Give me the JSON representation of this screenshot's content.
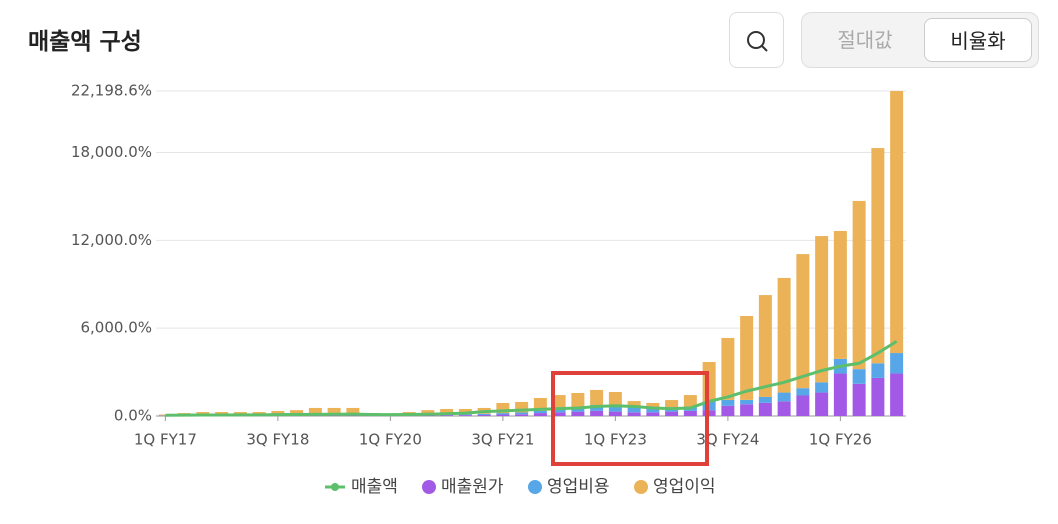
{
  "chart_data": {
    "type": "bar",
    "title": "매출액 구성",
    "categories": [
      "1Q FY17",
      null,
      null,
      null,
      null,
      null,
      "3Q FY18",
      null,
      null,
      null,
      null,
      null,
      "1Q FY20",
      null,
      null,
      null,
      null,
      null,
      "3Q FY21",
      null,
      null,
      null,
      null,
      null,
      "1Q FY23",
      null,
      null,
      null,
      null,
      null,
      "3Q FY24",
      null,
      null,
      null,
      null,
      null,
      "1Q FY26",
      null,
      null,
      null
    ],
    "ylim": [
      0,
      22198.6
    ],
    "yticks": [
      {
        "value": 0,
        "label": "0.0%"
      },
      {
        "value": 6000,
        "label": "6,000.0%"
      },
      {
        "value": 12000,
        "label": "12,000.0%"
      },
      {
        "value": 18000,
        "label": "18,000.0%"
      },
      {
        "value": 22198.6,
        "label": "22,198.6%"
      }
    ],
    "grid": true,
    "series": [
      {
        "name": "매출액",
        "type": "line",
        "color": "#5dbf6b",
        "values": [
          50,
          60,
          70,
          70,
          80,
          80,
          90,
          100,
          110,
          120,
          130,
          100,
          90,
          100,
          120,
          150,
          200,
          300,
          350,
          400,
          450,
          500,
          550,
          650,
          700,
          650,
          550,
          500,
          550,
          1000,
          1300,
          1700,
          2000,
          2300,
          2700,
          3100,
          3400,
          3600,
          4300,
          5100
        ]
      },
      {
        "name": "매출원가",
        "type": "bar",
        "color": "#a25ae6",
        "values": [
          20,
          30,
          40,
          40,
          40,
          40,
          50,
          50,
          60,
          60,
          60,
          40,
          30,
          40,
          50,
          60,
          60,
          70,
          100,
          120,
          200,
          250,
          300,
          350,
          300,
          250,
          250,
          300,
          350,
          400,
          700,
          800,
          900,
          1000,
          1400,
          1600,
          2900,
          2200,
          2600,
          2900
        ]
      },
      {
        "name": "영업비용",
        "type": "bar",
        "color": "#57a7e8",
        "values": [
          20,
          30,
          40,
          40,
          40,
          40,
          50,
          50,
          60,
          60,
          60,
          40,
          30,
          40,
          50,
          60,
          60,
          80,
          100,
          120,
          150,
          200,
          250,
          400,
          400,
          350,
          300,
          300,
          300,
          600,
          400,
          300,
          400,
          600,
          500,
          700,
          1000,
          1000,
          1000,
          1400
        ]
      },
      {
        "name": "영업이익",
        "type": "bar",
        "color": "#ebb257",
        "values": [
          60,
          140,
          190,
          190,
          190,
          190,
          240,
          300,
          430,
          430,
          430,
          120,
          80,
          190,
          300,
          360,
          360,
          400,
          690,
          720,
          880,
          980,
          1020,
          1030,
          940,
          420,
          340,
          490,
          780,
          2690,
          4230,
          5730,
          6960,
          7830,
          9160,
          9990,
          8740,
          11490,
          14700,
          17898.6
        ]
      }
    ]
  },
  "toolbar": {
    "options": [
      "절대값",
      "비율화"
    ]
  }
}
